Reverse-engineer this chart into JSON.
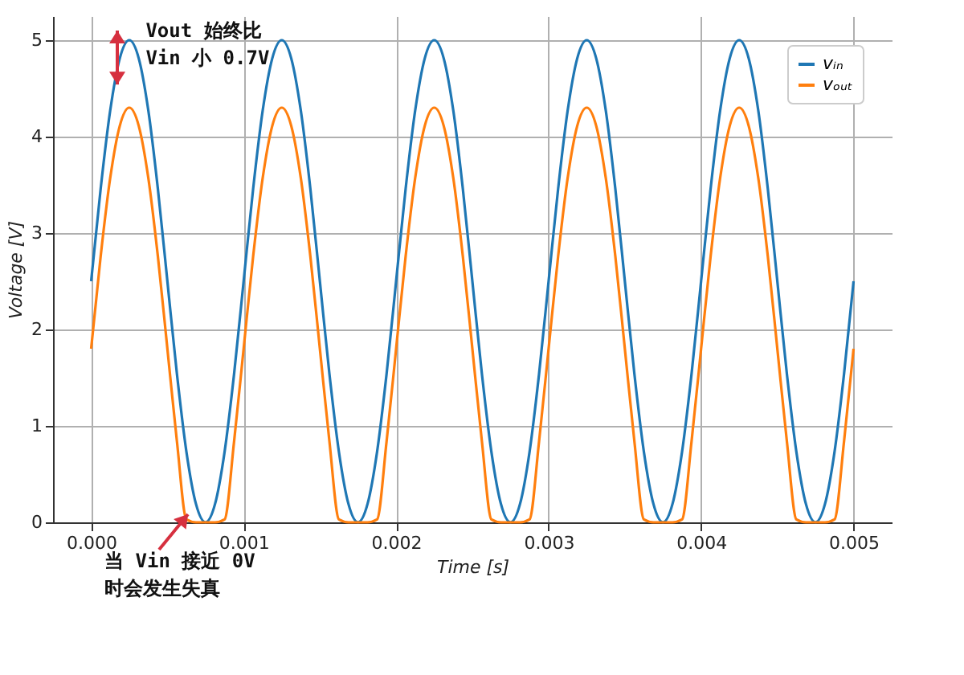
{
  "chart_data": {
    "type": "line",
    "xlabel": "Time [s]",
    "ylabel": "Voltage [V]",
    "annotations": [
      "Vout 始终比\nVin 小 0.7V",
      "当 Vin 接近 0V\n时会发生失真"
    ],
    "x": [
      0,
      6.25e-05,
      0.000125,
      0.0001875,
      0.00025,
      0.0003125,
      0.000375,
      0.0004375,
      0.0005,
      0.0005625,
      0.000625,
      0.0006875,
      0.00075,
      0.0008125,
      0.000875,
      0.0009375,
      0.001,
      0.0010625,
      0.001125,
      0.0011875,
      0.00125,
      0.0013125,
      0.001375,
      0.0014375,
      0.0015,
      0.0015625,
      0.001625,
      0.0016875,
      0.00175,
      0.0018125,
      0.001875,
      0.0019375,
      0.002,
      0.0020625,
      0.002125,
      0.0021875,
      0.00225,
      0.0023125,
      0.002375,
      0.0024375,
      0.0025,
      0.0025625,
      0.002625,
      0.0026875,
      0.00275,
      0.0028125,
      0.002875,
      0.0029375,
      0.003,
      0.0030625,
      0.003125,
      0.0031875,
      0.00325,
      0.0033125,
      0.003375,
      0.0034375,
      0.0035,
      0.0035625,
      0.003625,
      0.0036875,
      0.00375,
      0.0038125,
      0.003875,
      0.0039375,
      0.004,
      0.0040625,
      0.004125,
      0.0041875,
      0.00425,
      0.0043125,
      0.004375,
      0.0044375,
      0.0045,
      0.0045625,
      0.004625,
      0.0046875,
      0.00475,
      0.0048125,
      0.004875,
      0.0049375,
      0.005
    ],
    "series": [
      {
        "name": "vᵢₙ",
        "color": "#1f77b4",
        "values": [
          2.5,
          3.46,
          4.27,
          4.81,
          5,
          4.81,
          4.27,
          3.46,
          2.5,
          1.54,
          0.73,
          0.19,
          0,
          0.19,
          0.73,
          1.54,
          2.5,
          3.46,
          4.27,
          4.81,
          5,
          4.81,
          4.27,
          3.46,
          2.5,
          1.54,
          0.73,
          0.19,
          0,
          0.19,
          0.73,
          1.54,
          2.5,
          3.46,
          4.27,
          4.81,
          5,
          4.81,
          4.27,
          3.46,
          2.5,
          1.54,
          0.73,
          0.19,
          0,
          0.19,
          0.73,
          1.54,
          2.5,
          3.46,
          4.27,
          4.81,
          5,
          4.81,
          4.27,
          3.46,
          2.5,
          1.54,
          0.73,
          0.19,
          0,
          0.19,
          0.73,
          1.54,
          2.5,
          3.46,
          4.27,
          4.81,
          5,
          4.81,
          4.27,
          3.46,
          2.5,
          1.54,
          0.73,
          0.19,
          0,
          0.19,
          0.73,
          1.54,
          2.5
        ]
      },
      {
        "name": "vₒᵤₜ",
        "color": "#ff7f0e",
        "values": [
          1.8,
          2.76,
          3.57,
          4.11,
          4.3,
          4.11,
          3.57,
          2.76,
          1.8,
          0.84,
          0.03,
          0,
          0,
          0,
          0.03,
          0.84,
          1.8,
          2.76,
          3.57,
          4.11,
          4.3,
          4.11,
          3.57,
          2.76,
          1.8,
          0.84,
          0.03,
          0,
          0,
          0,
          0.03,
          0.84,
          1.8,
          2.76,
          3.57,
          4.11,
          4.3,
          4.11,
          3.57,
          2.76,
          1.8,
          0.84,
          0.03,
          0,
          0,
          0,
          0.03,
          0.84,
          1.8,
          2.76,
          3.57,
          4.11,
          4.3,
          4.11,
          3.57,
          2.76,
          1.8,
          0.84,
          0.03,
          0,
          0,
          0,
          0.03,
          0.84,
          1.8,
          2.76,
          3.57,
          4.11,
          4.3,
          4.11,
          3.57,
          2.76,
          1.8,
          0.84,
          0.03,
          0,
          0,
          0,
          0.03,
          0.84,
          1.8
        ]
      }
    ],
    "xlim": [
      -0.00025,
      0.00525
    ],
    "ylim": [
      0,
      5.25
    ],
    "xticks": [
      {
        "value": 0,
        "label": "0.000"
      },
      {
        "value": 0.001,
        "label": "0.001"
      },
      {
        "value": 0.002,
        "label": "0.002"
      },
      {
        "value": 0.003,
        "label": "0.003"
      },
      {
        "value": 0.004,
        "label": "0.004"
      },
      {
        "value": 0.005,
        "label": "0.005"
      }
    ],
    "yticks": [
      0,
      1,
      2,
      3,
      4,
      5
    ],
    "grid": true,
    "legend": "top right",
    "line_style": "solid"
  }
}
